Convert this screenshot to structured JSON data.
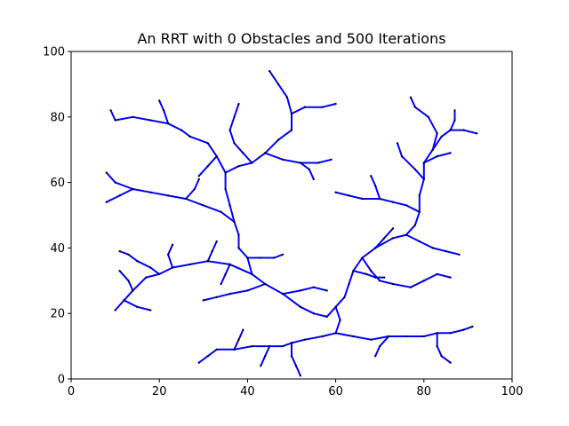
{
  "chart_data": {
    "type": "line",
    "title": "An RRT with 0 Obstacles and 500 Iterations",
    "xlabel": "",
    "ylabel": "",
    "xlim": [
      0,
      100
    ],
    "ylim": [
      0,
      100
    ],
    "xticks": [
      "0",
      "20",
      "40",
      "60",
      "80",
      "100"
    ],
    "yticks": [
      "0",
      "20",
      "40",
      "60",
      "80",
      "100"
    ],
    "grid": false,
    "legend": "none",
    "colors": {
      "edge": "#0000ff",
      "node": "#000000"
    },
    "series": [
      {
        "values": [
          [
            60,
            22
          ],
          [
            58,
            19
          ],
          [
            55,
            20
          ],
          [
            52,
            22
          ],
          [
            48,
            26
          ],
          [
            44,
            29
          ],
          [
            41,
            32
          ],
          [
            40,
            37
          ],
          [
            38,
            40
          ]
        ]
      },
      {
        "values": [
          [
            41,
            32
          ],
          [
            36,
            35
          ],
          [
            31,
            36
          ],
          [
            27,
            35
          ],
          [
            23,
            34
          ],
          [
            20,
            32
          ],
          [
            17,
            31
          ],
          [
            14,
            27
          ],
          [
            12,
            24
          ],
          [
            10,
            21
          ]
        ]
      },
      {
        "values": [
          [
            20,
            32
          ],
          [
            18,
            34
          ],
          [
            15,
            36
          ],
          [
            13,
            38
          ],
          [
            11,
            39
          ]
        ]
      },
      {
        "values": [
          [
            38,
            40
          ],
          [
            38,
            44
          ],
          [
            37,
            48
          ],
          [
            34,
            51
          ],
          [
            30,
            53
          ],
          [
            26,
            55
          ],
          [
            22,
            56
          ],
          [
            18,
            57
          ],
          [
            14,
            58
          ],
          [
            10,
            60
          ],
          [
            8,
            63
          ]
        ]
      },
      {
        "values": [
          [
            37,
            48
          ],
          [
            36,
            53
          ],
          [
            35,
            58
          ],
          [
            35,
            63
          ],
          [
            38,
            65
          ],
          [
            41,
            66
          ],
          [
            44,
            69
          ],
          [
            47,
            73
          ],
          [
            50,
            76
          ],
          [
            50,
            81
          ],
          [
            49,
            86
          ],
          [
            47,
            90
          ],
          [
            45,
            94
          ]
        ]
      },
      {
        "values": [
          [
            35,
            63
          ],
          [
            33,
            68
          ],
          [
            31,
            72
          ],
          [
            27,
            74
          ],
          [
            25,
            76
          ],
          [
            22,
            78
          ],
          [
            18,
            79
          ],
          [
            14,
            80
          ],
          [
            10,
            79
          ],
          [
            9,
            82
          ]
        ]
      },
      {
        "values": [
          [
            50,
            81
          ],
          [
            53,
            83
          ],
          [
            57,
            83
          ],
          [
            60,
            84
          ]
        ]
      },
      {
        "values": [
          [
            44,
            69
          ],
          [
            48,
            67
          ],
          [
            52,
            66
          ],
          [
            56,
            66
          ],
          [
            59,
            67
          ]
        ]
      },
      {
        "values": [
          [
            60,
            22
          ],
          [
            62,
            25
          ],
          [
            63,
            29
          ],
          [
            64,
            33
          ],
          [
            66,
            37
          ],
          [
            69,
            40
          ],
          [
            73,
            43
          ],
          [
            76,
            44
          ],
          [
            78,
            47
          ],
          [
            79,
            51
          ],
          [
            79,
            56
          ],
          [
            80,
            61
          ],
          [
            80,
            66
          ],
          [
            82,
            70
          ],
          [
            84,
            74
          ],
          [
            86,
            76
          ],
          [
            89,
            76
          ],
          [
            92,
            75
          ]
        ]
      },
      {
        "values": [
          [
            80,
            61
          ],
          [
            78,
            64
          ],
          [
            75,
            68
          ],
          [
            74,
            72
          ]
        ]
      },
      {
        "values": [
          [
            82,
            70
          ],
          [
            83,
            75
          ],
          [
            81,
            80
          ],
          [
            78,
            83
          ],
          [
            77,
            86
          ]
        ]
      },
      {
        "values": [
          [
            76,
            44
          ],
          [
            79,
            42
          ],
          [
            82,
            40
          ],
          [
            85,
            39
          ],
          [
            88,
            38
          ]
        ]
      },
      {
        "values": [
          [
            66,
            37
          ],
          [
            68,
            33
          ],
          [
            70,
            30
          ],
          [
            73,
            29
          ],
          [
            77,
            28
          ],
          [
            80,
            30
          ],
          [
            83,
            32
          ],
          [
            86,
            31
          ]
        ]
      },
      {
        "values": [
          [
            79,
            51
          ],
          [
            76,
            53
          ],
          [
            73,
            54
          ],
          [
            70,
            55
          ],
          [
            66,
            55
          ],
          [
            63,
            56
          ],
          [
            60,
            57
          ]
        ]
      },
      {
        "values": [
          [
            60,
            22
          ],
          [
            61,
            18
          ],
          [
            60,
            14
          ],
          [
            57,
            13
          ],
          [
            53,
            12
          ],
          [
            50,
            11
          ],
          [
            48,
            10
          ],
          [
            45,
            10
          ],
          [
            41,
            10
          ],
          [
            37,
            9
          ],
          [
            33,
            9
          ],
          [
            31,
            7
          ],
          [
            29,
            5
          ]
        ]
      },
      {
        "values": [
          [
            60,
            14
          ],
          [
            64,
            13
          ],
          [
            68,
            12
          ],
          [
            72,
            13
          ],
          [
            76,
            13
          ],
          [
            80,
            13
          ],
          [
            83,
            14
          ],
          [
            86,
            14
          ],
          [
            89,
            15
          ],
          [
            91,
            16
          ]
        ]
      },
      {
        "values": [
          [
            72,
            13
          ],
          [
            70,
            10
          ],
          [
            69,
            7
          ]
        ]
      },
      {
        "values": [
          [
            50,
            11
          ],
          [
            50,
            7
          ],
          [
            51,
            4
          ],
          [
            52,
            1
          ]
        ]
      },
      {
        "values": [
          [
            83,
            14
          ],
          [
            83,
            10
          ],
          [
            84,
            7
          ],
          [
            86,
            5
          ]
        ]
      },
      {
        "values": [
          [
            48,
            26
          ],
          [
            52,
            27
          ],
          [
            55,
            28
          ],
          [
            58,
            27
          ]
        ]
      },
      {
        "values": [
          [
            44,
            29
          ],
          [
            40,
            27
          ],
          [
            36,
            26
          ],
          [
            33,
            25
          ],
          [
            30,
            24
          ]
        ]
      },
      {
        "values": [
          [
            64,
            33
          ],
          [
            67,
            32
          ],
          [
            69,
            31
          ],
          [
            71,
            31
          ]
        ]
      },
      {
        "values": [
          [
            40,
            37
          ],
          [
            43,
            37
          ],
          [
            46,
            37
          ],
          [
            48,
            38
          ]
        ]
      },
      {
        "values": [
          [
            14,
            58
          ],
          [
            11,
            56
          ],
          [
            8,
            54
          ]
        ]
      },
      {
        "values": [
          [
            26,
            55
          ],
          [
            28,
            58
          ],
          [
            29,
            61
          ]
        ]
      },
      {
        "values": [
          [
            41,
            66
          ],
          [
            39,
            69
          ],
          [
            37,
            72
          ],
          [
            36,
            76
          ],
          [
            37,
            80
          ],
          [
            38,
            84
          ]
        ]
      },
      {
        "values": [
          [
            22,
            78
          ],
          [
            21,
            82
          ],
          [
            20,
            85
          ]
        ]
      },
      {
        "values": [
          [
            86,
            76
          ],
          [
            87,
            79
          ],
          [
            87,
            82
          ]
        ]
      },
      {
        "values": [
          [
            52,
            66
          ],
          [
            54,
            64
          ],
          [
            55,
            61
          ]
        ]
      },
      {
        "values": [
          [
            69,
            40
          ],
          [
            71,
            43
          ],
          [
            73,
            46
          ]
        ]
      },
      {
        "values": [
          [
            23,
            34
          ],
          [
            22,
            38
          ],
          [
            23,
            41
          ]
        ]
      },
      {
        "values": [
          [
            36,
            35
          ],
          [
            35,
            32
          ],
          [
            34,
            29
          ]
        ]
      },
      {
        "values": [
          [
            31,
            36
          ],
          [
            32,
            39
          ],
          [
            33,
            42
          ]
        ]
      },
      {
        "values": [
          [
            12,
            24
          ],
          [
            15,
            22
          ],
          [
            18,
            21
          ]
        ]
      },
      {
        "values": [
          [
            14,
            27
          ],
          [
            13,
            30
          ],
          [
            11,
            33
          ]
        ]
      },
      {
        "values": [
          [
            70,
            55
          ],
          [
            69,
            59
          ],
          [
            68,
            62
          ]
        ]
      },
      {
        "values": [
          [
            80,
            66
          ],
          [
            83,
            68
          ],
          [
            86,
            69
          ]
        ]
      },
      {
        "values": [
          [
            33,
            68
          ],
          [
            31,
            65
          ],
          [
            29,
            62
          ]
        ]
      },
      {
        "values": [
          [
            45,
            10
          ],
          [
            44,
            7
          ],
          [
            43,
            4
          ]
        ]
      },
      {
        "values": [
          [
            37,
            9
          ],
          [
            38,
            12
          ],
          [
            39,
            15
          ]
        ]
      }
    ]
  }
}
